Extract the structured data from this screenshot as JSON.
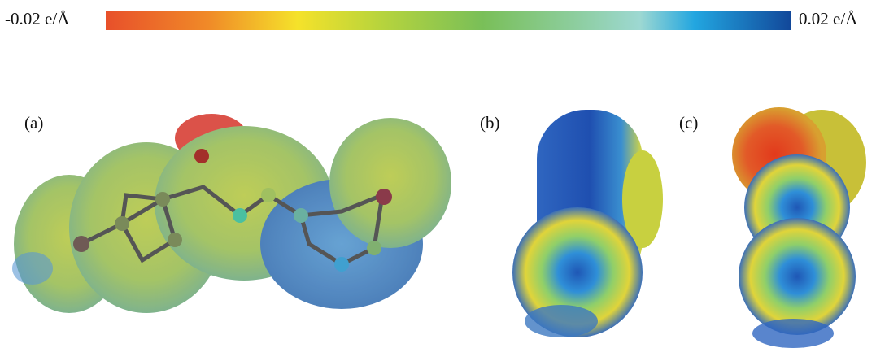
{
  "colorbar": {
    "min_label": "-0.02 e/Å",
    "max_label": "0.02 e/Å"
  },
  "panels": [
    {
      "label": "(a)"
    },
    {
      "label": "(b)"
    },
    {
      "label": "(c)"
    }
  ]
}
